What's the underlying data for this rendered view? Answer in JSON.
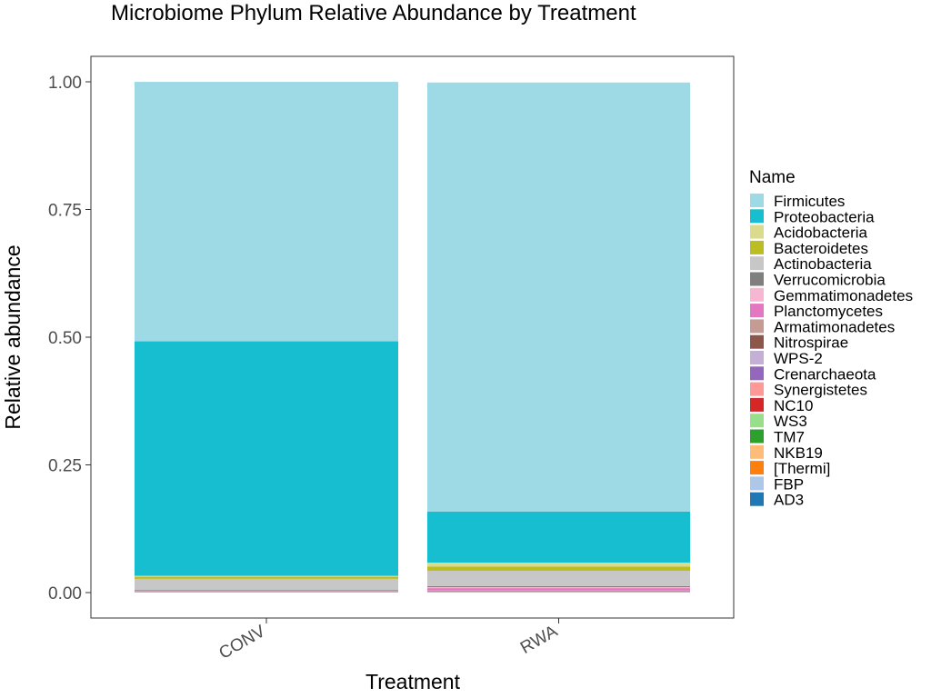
{
  "chart_data": {
    "type": "bar",
    "stacked": true,
    "title": "Microbiome Phylum Relative Abundance by Treatment",
    "xlabel": "Treatment",
    "ylabel": "Relative abundance",
    "categories": [
      "CONV",
      "RWA"
    ],
    "ylim": [
      0,
      1
    ],
    "yticks": [
      "0.00",
      "0.25",
      "0.50",
      "0.75",
      "1.00"
    ],
    "grid": false,
    "legend": {
      "title": "Name",
      "position": "right"
    },
    "series": [
      {
        "name": "AD3",
        "color": "#1f77b4",
        "values": [
          0.0001,
          0.0001
        ]
      },
      {
        "name": "FBP",
        "color": "#aec7e8",
        "values": [
          0.0001,
          0.0001
        ]
      },
      {
        "name": "[Thermi]",
        "color": "#ff7f0e",
        "values": [
          0.0001,
          0.0002
        ]
      },
      {
        "name": "NKB19",
        "color": "#ffbb78",
        "values": [
          0.0001,
          0.0002
        ]
      },
      {
        "name": "TM7",
        "color": "#2ca02c",
        "values": [
          0.0001,
          0.0002
        ]
      },
      {
        "name": "WS3",
        "color": "#98df8a",
        "values": [
          0.0001,
          0.0003
        ]
      },
      {
        "name": "NC10",
        "color": "#d62728",
        "values": [
          0.0001,
          0.0003
        ]
      },
      {
        "name": "Synergistetes",
        "color": "#ff9896",
        "values": [
          0.0002,
          0.0004
        ]
      },
      {
        "name": "Crenarchaeota",
        "color": "#9467bd",
        "values": [
          0.0002,
          0.0005
        ]
      },
      {
        "name": "WPS-2",
        "color": "#c5b0d5",
        "values": [
          0.0002,
          0.0006
        ]
      },
      {
        "name": "Nitrospirae",
        "color": "#8c564b",
        "values": [
          0.0003,
          0.0008
        ]
      },
      {
        "name": "Armatimonadetes",
        "color": "#c49c94",
        "values": [
          0.0003,
          0.001
        ]
      },
      {
        "name": "Planctomycetes",
        "color": "#e377c2",
        "values": [
          0.0005,
          0.004
        ]
      },
      {
        "name": "Gemmatimonadetes",
        "color": "#f7b6d2",
        "values": [
          0.0005,
          0.002
        ]
      },
      {
        "name": "Verrucomicrobia",
        "color": "#7f7f7f",
        "values": [
          0.002,
          0.002
        ]
      },
      {
        "name": "Actinobacteria",
        "color": "#c7c7c7",
        "values": [
          0.022,
          0.03
        ]
      },
      {
        "name": "Bacteroidetes",
        "color": "#bcbd22",
        "values": [
          0.004,
          0.008
        ]
      },
      {
        "name": "Acidobacteria",
        "color": "#dbdb8d",
        "values": [
          0.002,
          0.008
        ]
      },
      {
        "name": "Proteobacteria",
        "color": "#17becf",
        "values": [
          0.459,
          0.1
        ]
      },
      {
        "name": "Firmicutes",
        "color": "#9edae5",
        "values": [
          0.508,
          0.8399
        ]
      }
    ]
  }
}
